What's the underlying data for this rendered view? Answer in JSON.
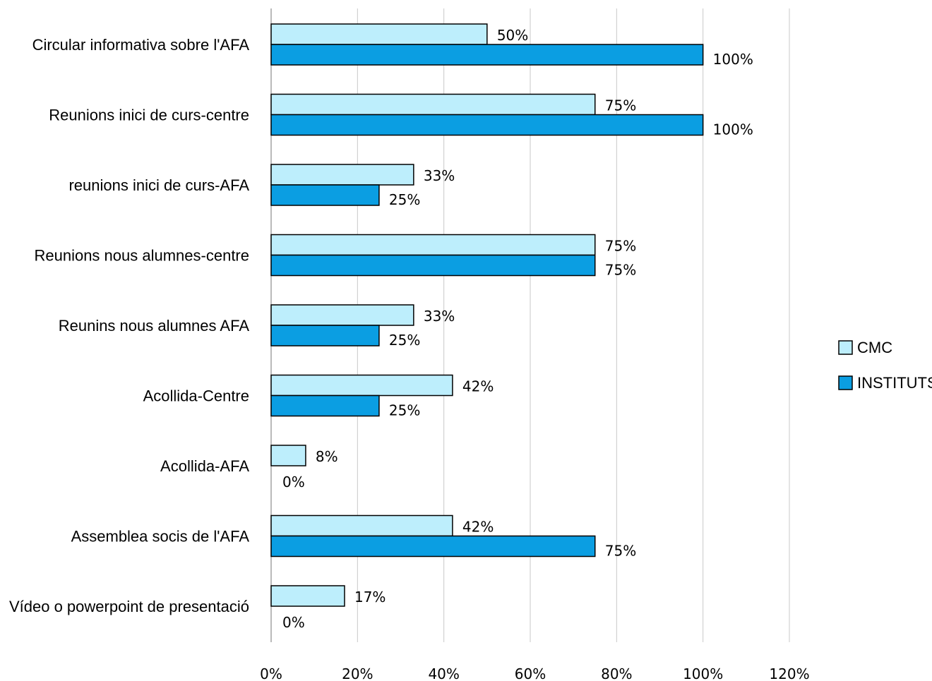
{
  "chart_data": {
    "type": "bar",
    "orientation": "horizontal",
    "categories": [
      "Circular informativa sobre l'AFA",
      "Reunions inici de curs-centre",
      "reunions inici de curs-AFA",
      "Reunions nous alumnes-centre",
      "Reunins nous alumnes AFA",
      "Acollida-Centre",
      "Acollida-AFA",
      "Assemblea socis de l'AFA",
      "Vídeo o powerpoint de presentació"
    ],
    "series": [
      {
        "name": "CMC",
        "color": "#bdeefc",
        "values": [
          50,
          75,
          33,
          75,
          33,
          42,
          8,
          42,
          17
        ],
        "labels": [
          "50%",
          "75%",
          "33%",
          "75%",
          "33%",
          "42%",
          "8%",
          "42%",
          "17%"
        ]
      },
      {
        "name": "INSTITUTS",
        "color": "#0b9ee2",
        "values": [
          100,
          100,
          25,
          75,
          25,
          25,
          0,
          75,
          0
        ],
        "labels": [
          "100%",
          "100%",
          "25%",
          "75%",
          "25%",
          "25%",
          "0%",
          "75%",
          "0%"
        ]
      }
    ],
    "xlim": [
      0,
      120
    ],
    "xticks": [
      "0%",
      "20%",
      "40%",
      "60%",
      "80%",
      "100%",
      "120%"
    ],
    "grid": "vertical",
    "legend": "right"
  }
}
